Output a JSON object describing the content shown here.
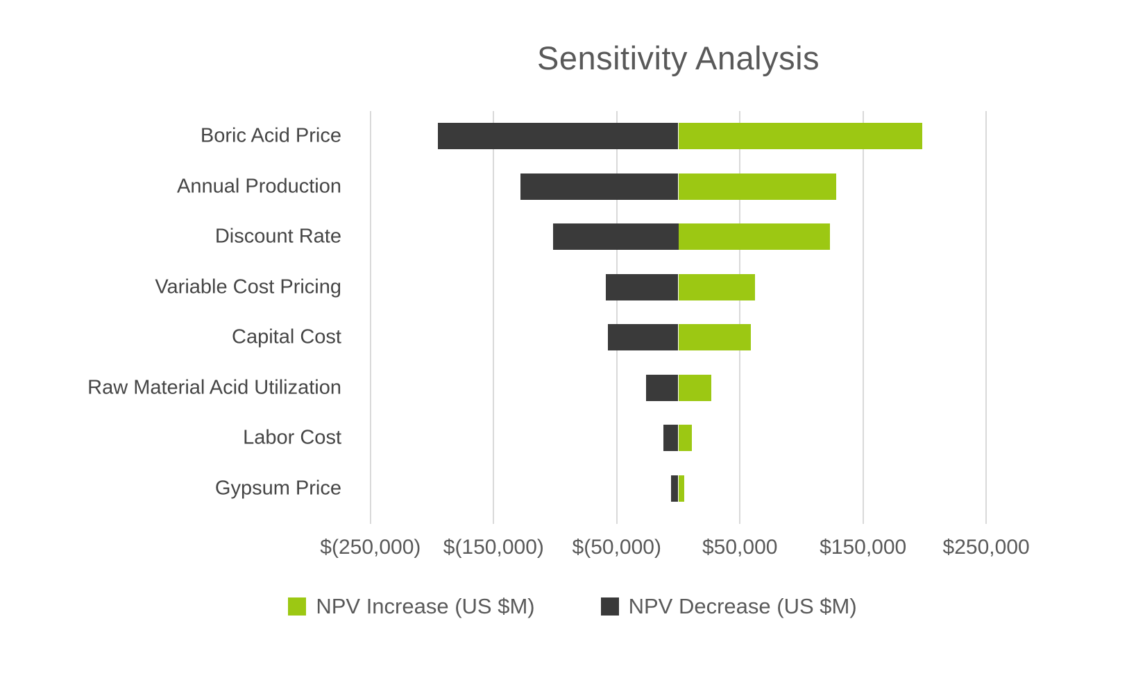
{
  "chart_data": {
    "type": "bar",
    "orientation": "horizontal",
    "title": "Sensitivity Analysis",
    "categories": [
      "Boric Acid Price",
      "Annual Production",
      "Discount Rate",
      "Variable Cost Pricing",
      "Capital Cost",
      "Raw Material Acid Utilization",
      "Labor Cost",
      "Gypsum Price"
    ],
    "series": [
      {
        "name": "NPV Increase (US $M)",
        "color": "#9cc813",
        "values": [
          198000,
          128000,
          123000,
          62000,
          59000,
          27000,
          11000,
          5000
        ]
      },
      {
        "name": "NPV Decrease (US $M)",
        "color": "#3a3a3a",
        "values": [
          -195000,
          -128000,
          -102000,
          -59000,
          -57000,
          -26000,
          -12000,
          -6000
        ]
      }
    ],
    "xlim": [
      -255000,
      255000
    ],
    "x_ticks": [
      -250000,
      -150000,
      -50000,
      50000,
      150000,
      250000
    ],
    "x_tick_labels": [
      "$(250,000)",
      "$(150,000)",
      "$(50,000)",
      "$50,000",
      "$150,000",
      "$250,000"
    ],
    "grid": "vertical",
    "legend_position": "bottom",
    "colors": {
      "grid": "#d9d9d9",
      "title_text": "#595959",
      "axis_text": "#595959",
      "category_text": "#454545"
    }
  }
}
